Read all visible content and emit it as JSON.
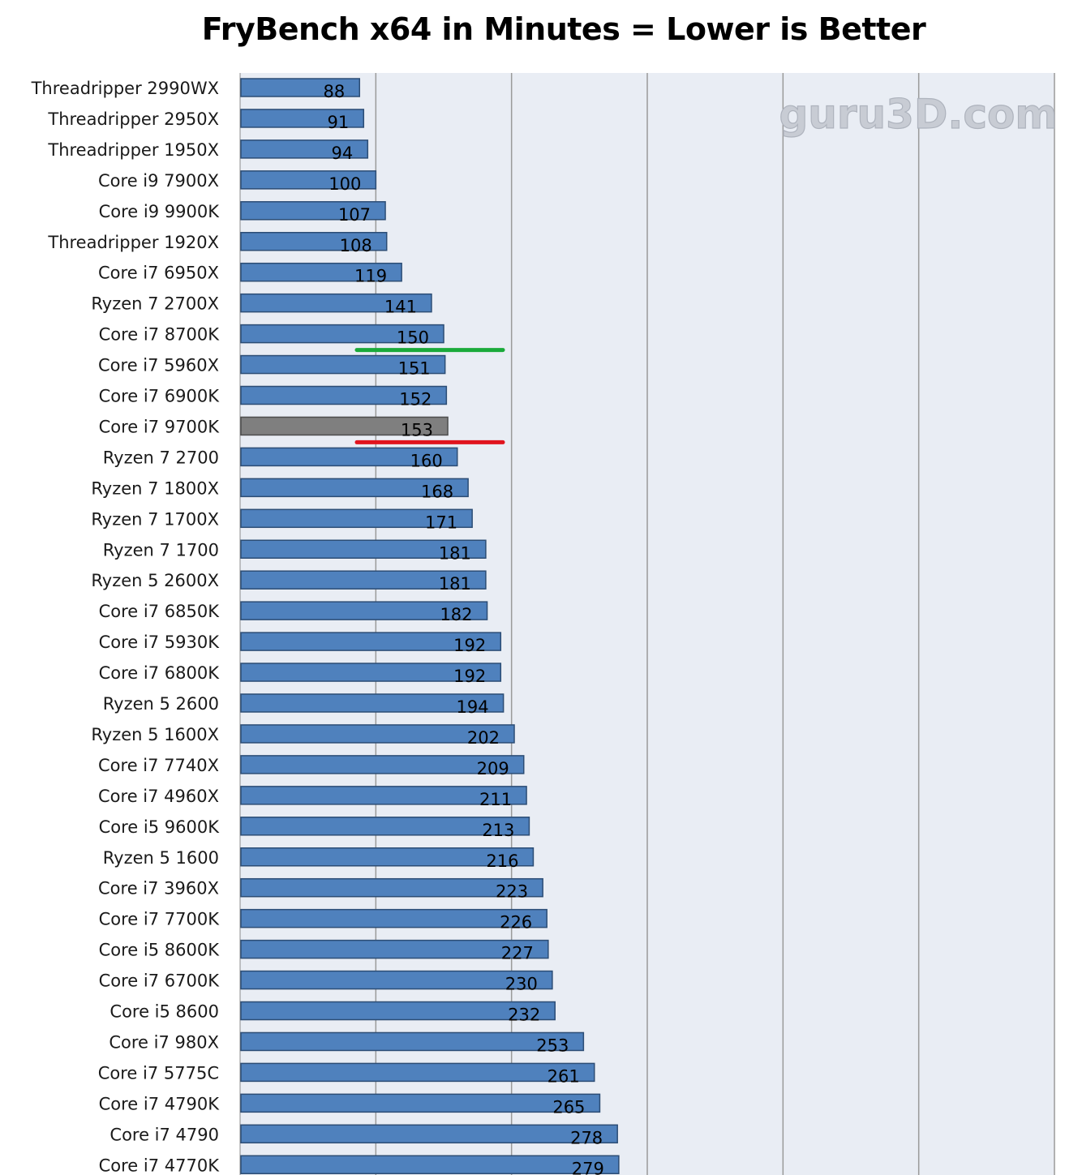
{
  "title": "FryBench x64 in Minutes = Lower is Better",
  "watermark": "guru3D.com",
  "chart_data": {
    "type": "bar",
    "orientation": "horizontal",
    "title": "FryBench x64 in Minutes = Lower is Better",
    "xlabel": "",
    "ylabel": "",
    "xlim": [
      0,
      600
    ],
    "grid": true,
    "categories": [
      "Threadripper 2990WX",
      "Threadripper 2950X",
      "Threadripper  1950X",
      "Core i9 7900X",
      "Core i9 9900K",
      "Threadripper  1920X",
      "Core i7 6950X",
      "Ryzen 7 2700X",
      "Core i7 8700K",
      "Core i7 5960X",
      "Core i7 6900K",
      "Core i7 9700K",
      "Ryzen 7 2700",
      "Ryzen 7 1800X",
      "Ryzen 7 1700X",
      "Ryzen 7 1700",
      "Ryzen 5 2600X",
      "Core i7 6850K",
      "Core i7 5930K",
      "Core i7 6800K",
      "Ryzen 5 2600",
      "Ryzen 5 1600X",
      "Core i7 7740X",
      "Core i7 4960X",
      "Core i5 9600K",
      "Ryzen 5 1600",
      "Core i7 3960X",
      "Core i7 7700K",
      "Core i5 8600K",
      "Core i7 6700K",
      "Core i5 8600",
      "Core i7 980X",
      "Core i7 5775C",
      "Core i7 4790K",
      "Core i7 4790",
      "Core i7 4770K"
    ],
    "values": [
      88,
      91,
      94,
      100,
      107,
      108,
      119,
      141,
      150,
      151,
      152,
      153,
      160,
      168,
      171,
      181,
      181,
      182,
      192,
      192,
      194,
      202,
      209,
      211,
      213,
      216,
      223,
      226,
      227,
      230,
      232,
      253,
      261,
      265,
      278,
      279
    ],
    "highlight_category": "Core i7 9700K",
    "colors": {
      "bar": "#4f81bd",
      "bar_border": "#2c4d75",
      "highlight_bar": "#7f7f7f",
      "highlight_border": "#4d4d4d",
      "plot_background": "#e9edf4",
      "grid": "#9a9a9a",
      "marker_above": "#1aaa3a",
      "marker_below": "#e0141e"
    },
    "annotations": [
      {
        "type": "line",
        "color": "#1aaa3a",
        "between": [
          "Core i7 8700K",
          "Core i7 5960X"
        ]
      },
      {
        "type": "line",
        "color": "#e0141e",
        "between": [
          "Core i7 9700K",
          "Ryzen 7 2700"
        ]
      }
    ]
  }
}
